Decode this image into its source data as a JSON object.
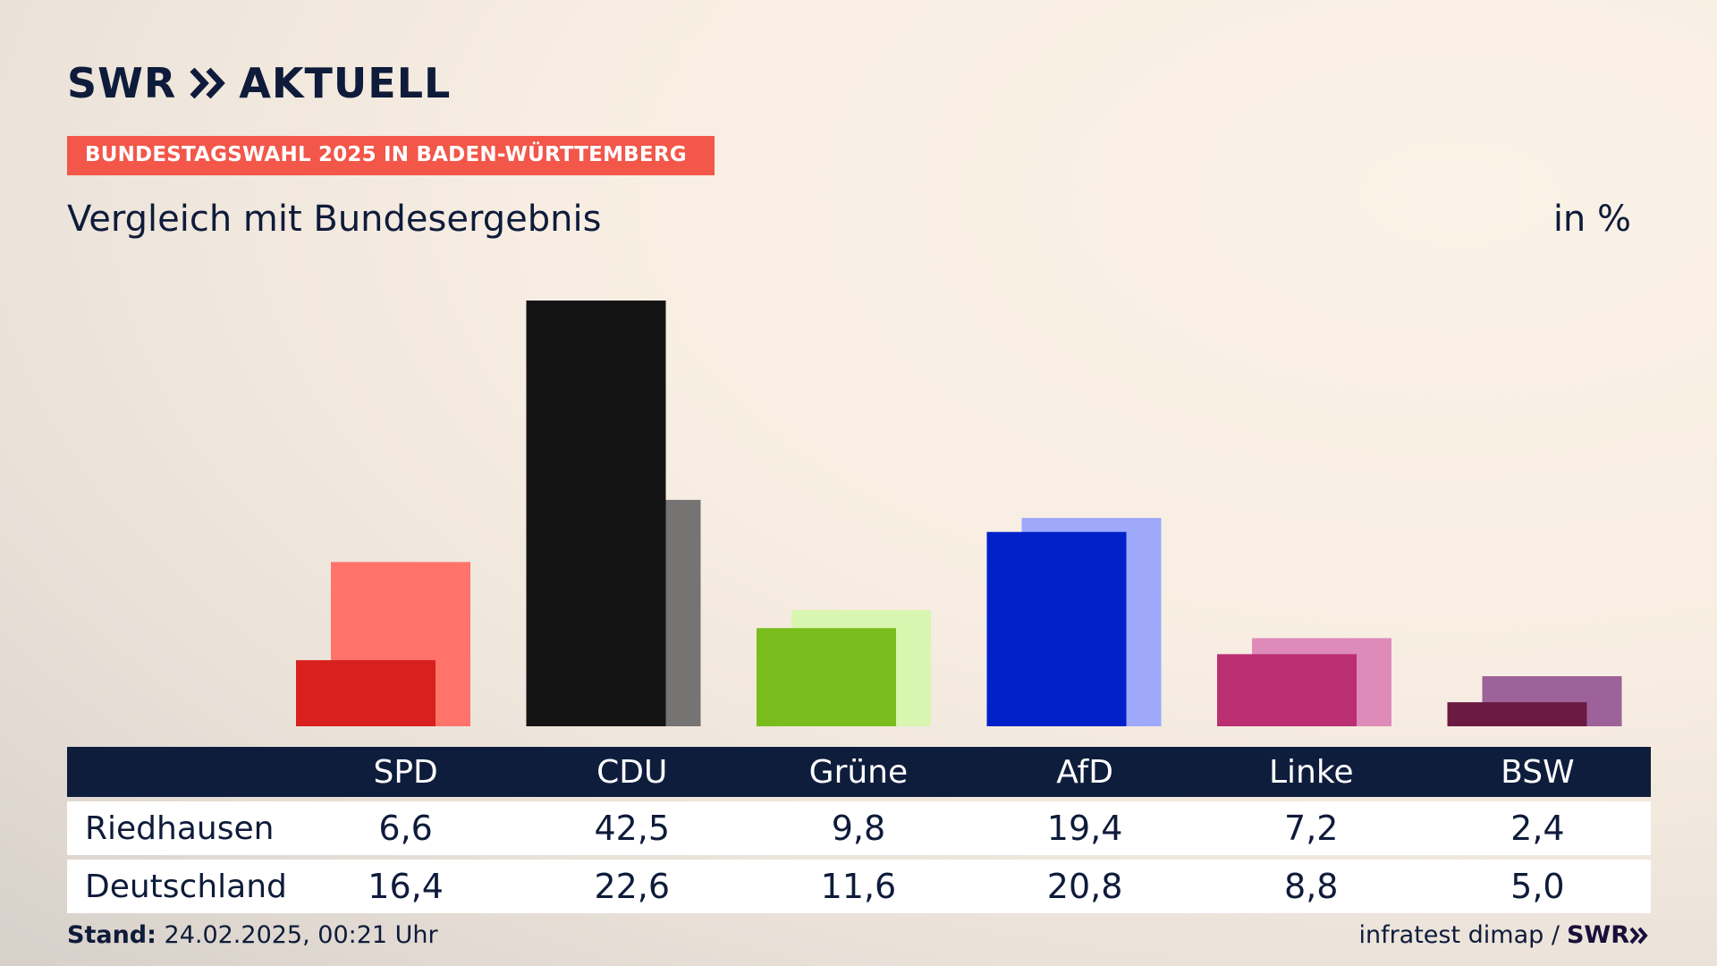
{
  "brand": {
    "logo_text_left": "SWR",
    "logo_text_right": "AKTUELL"
  },
  "tag": "BUNDESTAGSWAHL 2025 IN BADEN-WÜRTTEMBERG",
  "subtitle": "Vergleich mit Bundesergebnis",
  "unit": "in %",
  "footer": {
    "stand_label": "Stand:",
    "stand_value": "24.02.2025, 00:21 Uhr",
    "source": "infratest dimap /",
    "source_logo": "SWR"
  },
  "chart_data": {
    "type": "bar",
    "categories": [
      "SPD",
      "CDU",
      "Grüne",
      "AfD",
      "Linke",
      "BSW"
    ],
    "series": [
      {
        "name": "Riedhausen",
        "values": [
          6.6,
          42.5,
          9.8,
          19.4,
          7.2,
          2.4
        ]
      },
      {
        "name": "Deutschland",
        "values": [
          16.4,
          22.6,
          11.6,
          20.8,
          8.8,
          5.0
        ]
      }
    ],
    "value_labels": {
      "Riedhausen": [
        "6,6",
        "42,5",
        "9,8",
        "19,4",
        "7,2",
        "2,4"
      ],
      "Deutschland": [
        "16,4",
        "22,6",
        "11,6",
        "20,8",
        "8,8",
        "5,0"
      ]
    },
    "colors_local": [
      "#d8201f",
      "#141414",
      "#79bd1d",
      "#0021c9",
      "#bb2f72",
      "#6b1a41"
    ],
    "colors_national": [
      "#ff736b",
      "#757473",
      "#d8f6b0",
      "#9ea9fc",
      "#df8bba",
      "#9d6299"
    ],
    "ylim": [
      0,
      42.5
    ],
    "grid": false
  }
}
